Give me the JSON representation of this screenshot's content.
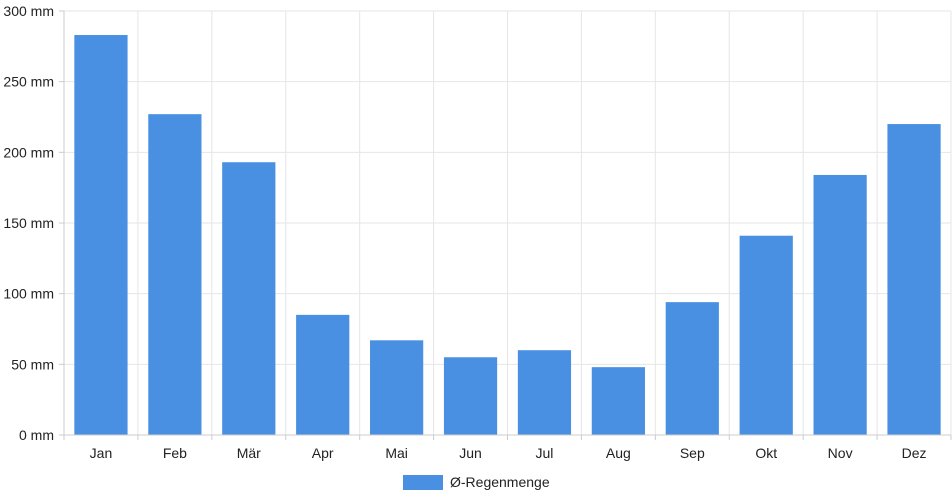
{
  "chart_data": {
    "type": "bar",
    "categories": [
      "Jan",
      "Feb",
      "Mär",
      "Apr",
      "Mai",
      "Jun",
      "Jul",
      "Aug",
      "Sep",
      "Okt",
      "Nov",
      "Dez"
    ],
    "series": [
      {
        "name": "Ø-Regenmenge",
        "values": [
          283,
          227,
          193,
          85,
          67,
          55,
          60,
          48,
          94,
          141,
          184,
          220
        ],
        "color": "#4a90e2"
      }
    ],
    "ylim": [
      0,
      300
    ],
    "yticks": [
      0,
      50,
      100,
      150,
      200,
      250,
      300
    ],
    "ytick_labels": [
      "0 mm",
      "50 mm",
      "100 mm",
      "150 mm",
      "200 mm",
      "250 mm",
      "300 mm"
    ],
    "grid": true,
    "legend_position": "bottom-center"
  }
}
